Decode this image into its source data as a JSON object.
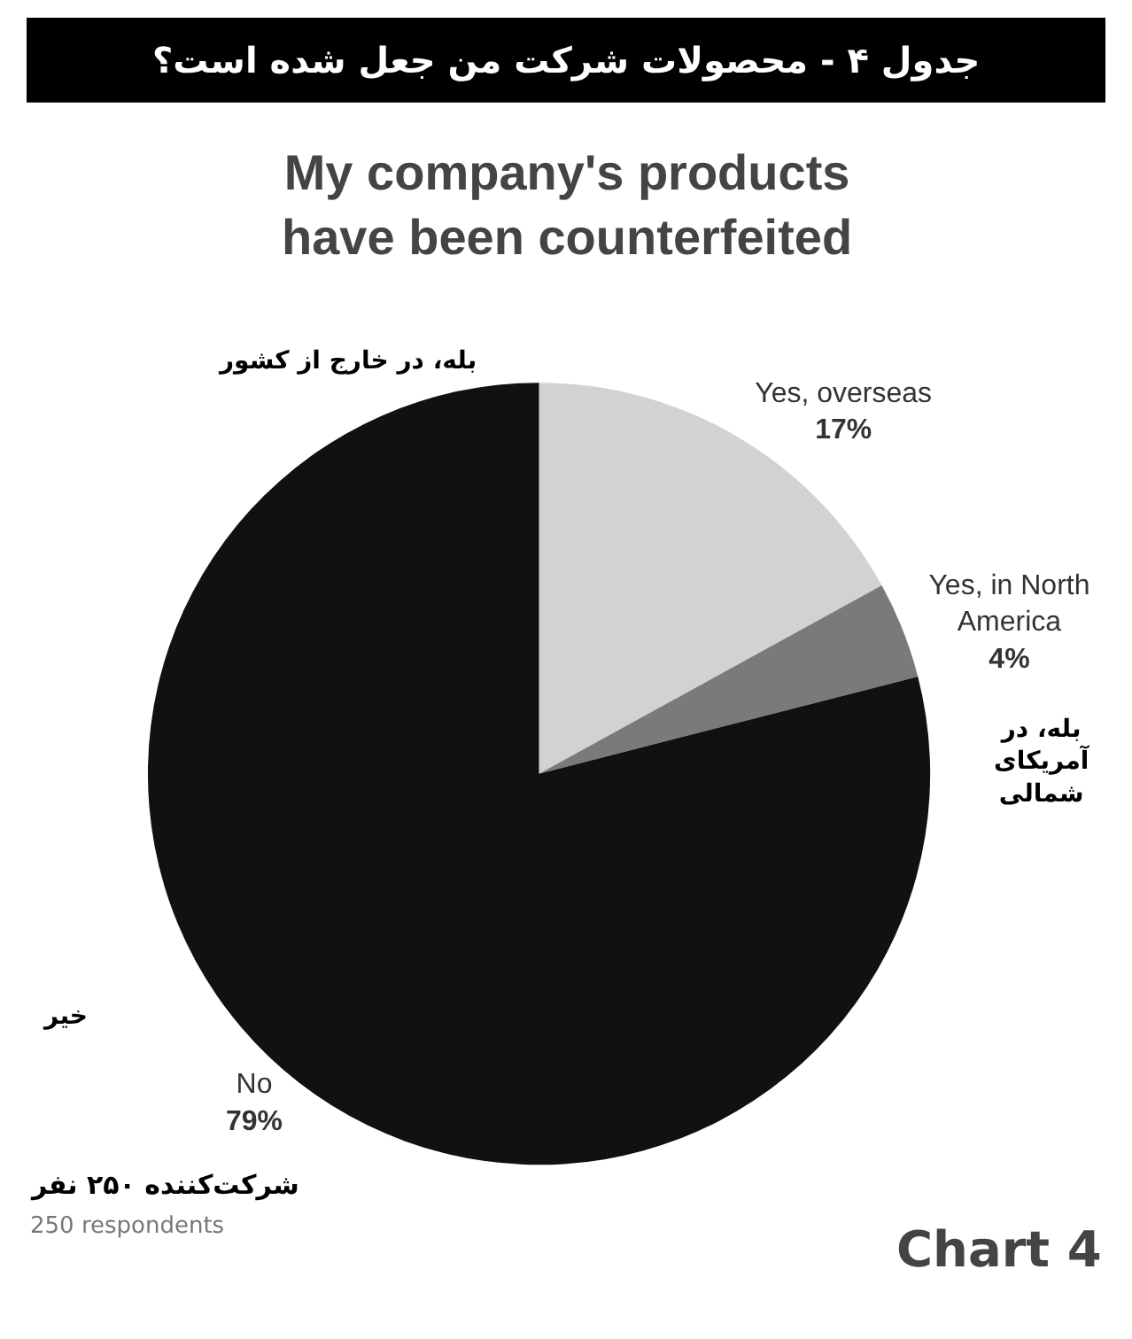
{
  "chart_data": {
    "type": "pie",
    "title": "جدول ۴ - محصولات شرکت من جعل شده است؟",
    "subtitle": "My company's products have been counterfeited",
    "categories": [
      "Yes, overseas",
      "Yes, in North America",
      "No"
    ],
    "values": [
      17,
      4,
      79
    ],
    "value_labels": [
      "17%",
      "4%",
      "79%"
    ],
    "colors": [
      "#d2d2d2",
      "#7a7a7a",
      "#111111"
    ],
    "legend": false,
    "annotations": [
      "بله، در خارج از کشور",
      "بله، در آمریکای شمالی",
      "خیر",
      "شرکت‌کننده ۲۵۰ نفر",
      "250 respondents",
      "Chart 4"
    ]
  }
}
